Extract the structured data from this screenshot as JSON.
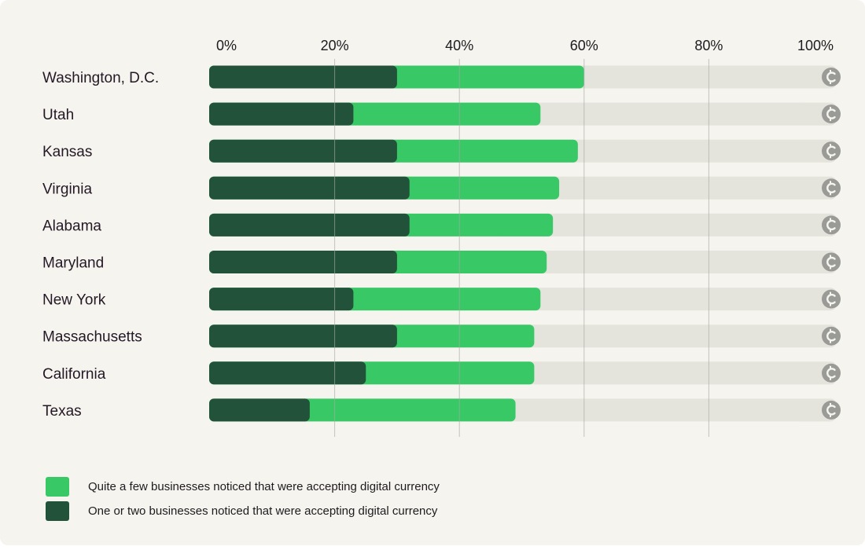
{
  "chart_data": {
    "type": "bar",
    "orientation": "horizontal",
    "stacked": true,
    "title": "",
    "xlabel": "",
    "ylabel": "",
    "xlim": [
      0,
      100
    ],
    "x_tick_labels": [
      "0%",
      "20%",
      "40%",
      "60%",
      "80%",
      "100%"
    ],
    "categories": [
      "Washington, D.C.",
      "Utah",
      "Kansas",
      "Virginia",
      "Alabama",
      "Maryland",
      "New York",
      "Massachusetts",
      "California",
      "Texas"
    ],
    "series": [
      {
        "name": "One or two businesses noticed that were accepting digital currency",
        "color": "#23523a",
        "values": [
          30,
          23,
          30,
          32,
          32,
          30,
          23,
          30,
          25,
          16
        ]
      },
      {
        "name": "Quite a few businesses noticed that were accepting digital currency",
        "color": "#38c866",
        "values": [
          30,
          30,
          29,
          24,
          23,
          24,
          30,
          22,
          27,
          33
        ]
      }
    ],
    "totals": [
      60,
      53,
      59,
      56,
      55,
      54,
      53,
      52,
      52,
      49
    ],
    "grid": true,
    "legend_position": "bottom-left",
    "track_color": "#e4e3dc",
    "end_icon": "digital-currency-icon"
  },
  "legend": [
    {
      "label": "Quite a few businesses noticed that were accepting digital currency",
      "color": "#38c866"
    },
    {
      "label": "One or two businesses noticed that were accepting digital currency",
      "color": "#23523a"
    }
  ],
  "colors": {
    "background": "#f5f4ee",
    "gridline": "#a9a9a4",
    "icon": "#9a9a96"
  }
}
